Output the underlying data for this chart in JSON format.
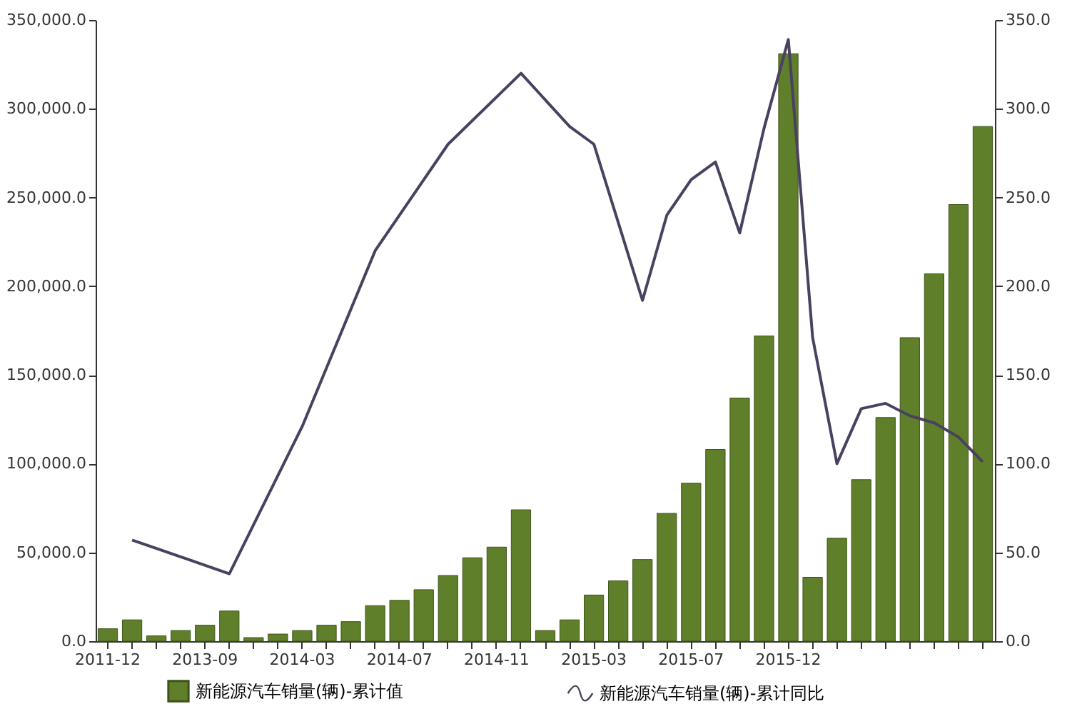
{
  "chart_data": {
    "type": "bar",
    "categories": [
      "2011-12",
      null,
      null,
      null,
      "2013-09",
      null,
      null,
      null,
      "2014-03",
      null,
      null,
      null,
      "2014-07",
      null,
      null,
      null,
      "2014-11",
      null,
      null,
      null,
      "2015-03",
      null,
      null,
      null,
      "2015-07",
      null,
      null,
      null,
      "2015-12",
      null,
      null,
      null,
      null,
      null,
      null,
      null,
      null
    ],
    "series": [
      {
        "name": "新能源汽车销量(辆)-累计值",
        "color": "#5f7f2a",
        "values": [
          7000,
          12000,
          3000,
          6000,
          9000,
          17000,
          2000,
          4000,
          6000,
          9000,
          11000,
          20000,
          23000,
          29000,
          37000,
          47000,
          53000,
          74000,
          6000,
          12000,
          26000,
          34000,
          46000,
          72000,
          89000,
          108000,
          137000,
          172000,
          331000,
          36000,
          58000,
          91000,
          126000,
          171000,
          207000,
          246000,
          290000
        ]
      },
      {
        "name": "新能源汽车销量(辆)-累计同比",
        "type": "line",
        "axis": "y2",
        "color": "#4a4060",
        "values": [
          null,
          57,
          null,
          null,
          null,
          38,
          null,
          null,
          121,
          null,
          null,
          220,
          240,
          null,
          280,
          null,
          null,
          320,
          null,
          290,
          280,
          null,
          192,
          240,
          260,
          270,
          230,
          289,
          339,
          171,
          100,
          131,
          134,
          127,
          123,
          115,
          101
        ]
      }
    ],
    "ylim": [
      0,
      350000
    ],
    "yticks": [
      {
        "value": 0,
        "label": "0.0"
      },
      {
        "value": 50000,
        "label": "50,000.0"
      },
      {
        "value": 100000,
        "label": "100,000.0"
      },
      {
        "value": 150000,
        "label": "150,000.0"
      },
      {
        "value": 200000,
        "label": "200,000.0"
      },
      {
        "value": 250000,
        "label": "250,000.0"
      },
      {
        "value": 300000,
        "label": "300,000.0"
      },
      {
        "value": 350000,
        "label": "350,000.0"
      }
    ],
    "y2lim": [
      0,
      350
    ],
    "y2ticks": [
      {
        "value": 0,
        "label": "0.0"
      },
      {
        "value": 50,
        "label": "50.0"
      },
      {
        "value": 100,
        "label": "100.0"
      },
      {
        "value": 150,
        "label": "150.0"
      },
      {
        "value": 200,
        "label": "200.0"
      },
      {
        "value": 250,
        "label": "250.0"
      },
      {
        "value": 300,
        "label": "300.0"
      },
      {
        "value": 350,
        "label": "350.0"
      }
    ],
    "grid": false,
    "legend": "bottom"
  }
}
